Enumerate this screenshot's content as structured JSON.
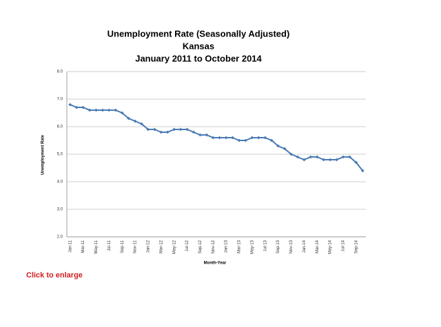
{
  "chart_data": {
    "type": "line",
    "title": "Unemployment Rate (Seasonally Adjusted)",
    "subtitle": "Kansas",
    "period": "January 2011 to October 2014",
    "y_label": "Unemployment Rate",
    "x_label": "Month-Year",
    "categories": [
      "Jan-11",
      null,
      "Mar-11",
      null,
      "May-11",
      null,
      "Jul-11",
      null,
      "Sep-11",
      null,
      "Nov-11",
      null,
      "Jan-12",
      null,
      "Mar-12",
      null,
      "May-12",
      null,
      "Jul-12",
      null,
      "Sep-12",
      null,
      "Nov-12",
      null,
      "Jan-13",
      null,
      "Mar-13",
      null,
      "May-13",
      null,
      "Jul-13",
      null,
      "Sep-13",
      null,
      "Nov-13",
      null,
      "Jan-14",
      null,
      "Mar-14",
      null,
      "May-14",
      null,
      "Jul-14",
      null,
      "Sep-14",
      null
    ],
    "values": [
      6.8,
      6.7,
      6.7,
      6.6,
      6.6,
      6.6,
      6.6,
      6.6,
      6.5,
      6.3,
      6.2,
      6.1,
      5.9,
      5.9,
      5.8,
      5.8,
      5.9,
      5.9,
      5.9,
      5.8,
      5.7,
      5.7,
      5.6,
      5.6,
      5.6,
      5.6,
      5.5,
      5.5,
      5.6,
      5.6,
      5.6,
      5.5,
      5.3,
      5.2,
      5.0,
      4.9,
      4.8,
      4.9,
      4.9,
      4.8,
      4.8,
      4.8,
      4.9,
      4.9,
      4.7,
      4.4
    ],
    "color": "#4a7ab5",
    "ylim": [
      2,
      8
    ],
    "yticks": [
      {
        "value": 2,
        "label": "2.0"
      },
      {
        "value": 3,
        "label": "3.0"
      },
      {
        "value": 4,
        "label": "4.0"
      },
      {
        "value": 5,
        "label": "5.0"
      },
      {
        "value": 6,
        "label": "6.0"
      },
      {
        "value": 7,
        "label": "7.0"
      },
      {
        "value": 8,
        "label": "8.0"
      }
    ],
    "grid": true
  },
  "link": "Click to enlarge"
}
